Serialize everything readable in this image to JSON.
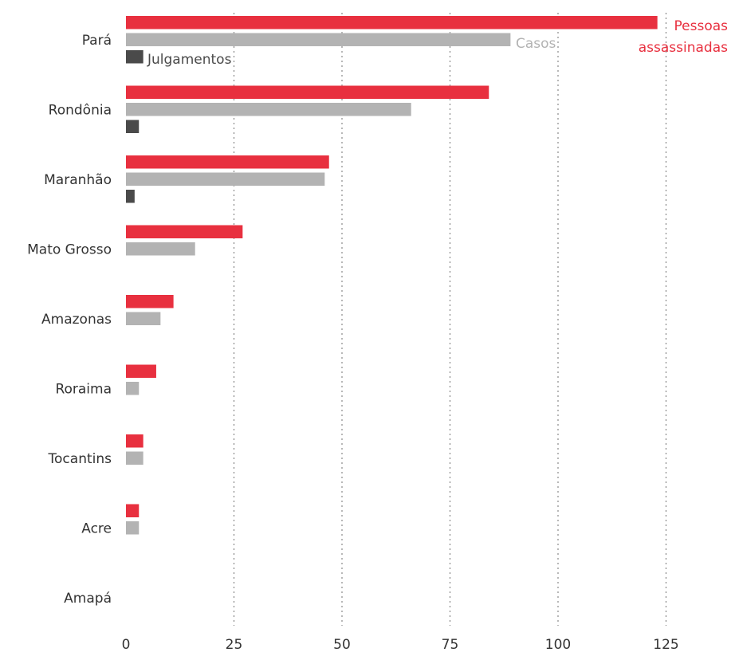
{
  "chart_data": {
    "type": "bar",
    "orientation": "horizontal",
    "categories": [
      "Pará",
      "Rondônia",
      "Maranhão",
      "Mato Grosso",
      "Amazonas",
      "Roraima",
      "Tocantins",
      "Acre",
      "Amapá"
    ],
    "series": [
      {
        "name": "Pessoas assassinadas",
        "label_lines": [
          "Pessoas",
          "assassinadas"
        ],
        "color": "#e8303f",
        "values": [
          123,
          84,
          47,
          27,
          11,
          7,
          4,
          3,
          0
        ]
      },
      {
        "name": "Casos",
        "label_lines": [
          "Casos"
        ],
        "color": "#b3b3b3",
        "values": [
          89,
          66,
          46,
          16,
          8,
          3,
          4,
          3,
          0
        ]
      },
      {
        "name": "Julgamentos",
        "label_lines": [
          "Julgamentos"
        ],
        "color": "#4a4a4a",
        "values": [
          4,
          3,
          2,
          0,
          0,
          0,
          0,
          0,
          0
        ]
      }
    ],
    "x_ticks": [
      0,
      25,
      50,
      75,
      100,
      125
    ],
    "xlim": [
      0,
      140
    ],
    "grid": "vertical dotted",
    "legend": "inline labels at the end of the Pará bars"
  }
}
